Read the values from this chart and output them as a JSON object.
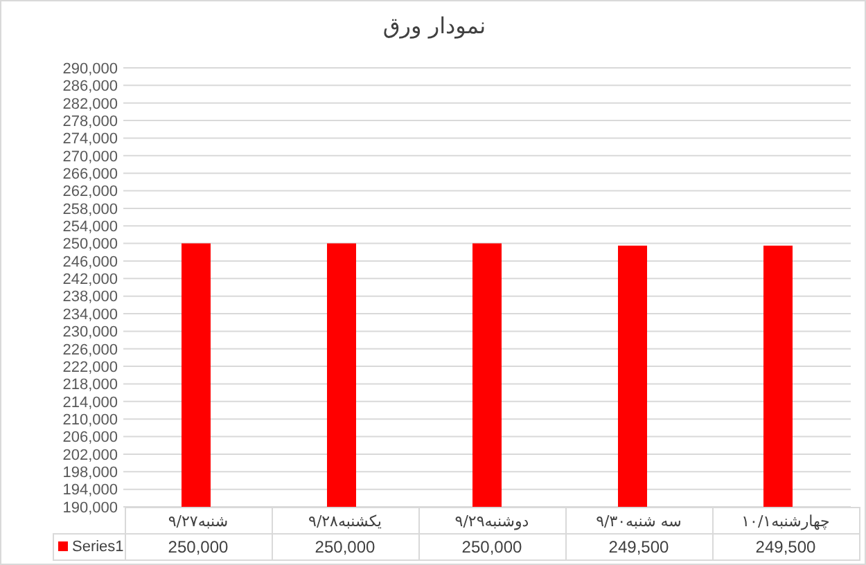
{
  "chart_data": {
    "type": "bar",
    "title": "نمودار ورق",
    "categories": [
      "شنبه۹/۲۷",
      "یکشنبه۹/۲۸",
      "دوشنبه۹/۲۹",
      "سه شنبه۹/۳۰",
      "چهارشنبه۱۰/۱"
    ],
    "series": [
      {
        "name": "Series1",
        "color": "#ff0000",
        "values": [
          250000,
          250000,
          250000,
          249500,
          249500
        ],
        "value_labels": [
          "250,000",
          "250,000",
          "250,000",
          "249,500",
          "249,500"
        ]
      }
    ],
    "ylim": [
      190000,
      290000
    ],
    "yticks": [
      {
        "value": 190000,
        "label": "190,000"
      },
      {
        "value": 194000,
        "label": "194,000"
      },
      {
        "value": 198000,
        "label": "198,000"
      },
      {
        "value": 202000,
        "label": "202,000"
      },
      {
        "value": 206000,
        "label": "206,000"
      },
      {
        "value": 210000,
        "label": "210,000"
      },
      {
        "value": 214000,
        "label": "214,000"
      },
      {
        "value": 218000,
        "label": "218,000"
      },
      {
        "value": 222000,
        "label": "222,000"
      },
      {
        "value": 226000,
        "label": "226,000"
      },
      {
        "value": 230000,
        "label": "230,000"
      },
      {
        "value": 234000,
        "label": "234,000"
      },
      {
        "value": 238000,
        "label": "238,000"
      },
      {
        "value": 242000,
        "label": "242,000"
      },
      {
        "value": 246000,
        "label": "246,000"
      },
      {
        "value": 250000,
        "label": "250,000"
      },
      {
        "value": 254000,
        "label": "254,000"
      },
      {
        "value": 258000,
        "label": "258,000"
      },
      {
        "value": 262000,
        "label": "262,000"
      },
      {
        "value": 266000,
        "label": "266,000"
      },
      {
        "value": 270000,
        "label": "270,000"
      },
      {
        "value": 274000,
        "label": "274,000"
      },
      {
        "value": 278000,
        "label": "278,000"
      },
      {
        "value": 282000,
        "label": "282,000"
      },
      {
        "value": 286000,
        "label": "286,000"
      },
      {
        "value": 290000,
        "label": "290,000"
      }
    ],
    "grid": "y",
    "legend": "bottom"
  }
}
